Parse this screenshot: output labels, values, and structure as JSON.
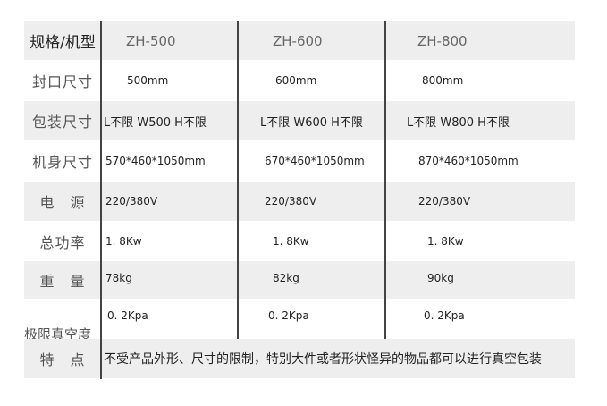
{
  "header": {
    "label": "规格/机型",
    "models": [
      "ZH-500",
      "ZH-600",
      "ZH-800"
    ]
  },
  "rows": [
    {
      "label": "封口尺寸",
      "values": [
        "500mm",
        "600mm",
        "800mm"
      ]
    },
    {
      "label": "包装尺寸",
      "values": [
        "L不限 W500 H不限",
        "L不限 W600 H不限",
        "L不限 W800 H不限"
      ]
    },
    {
      "label": "机身尺寸",
      "values": [
        "570*460*1050mm",
        "670*460*1050mm",
        "870*460*1050mm"
      ]
    },
    {
      "label": "电　源",
      "values": [
        "220/380V",
        "220/380V",
        "220/380V"
      ]
    },
    {
      "label": "总功率",
      "values": [
        "1. 8Kw",
        "1. 8Kw",
        "1. 8Kw"
      ]
    },
    {
      "label": "重　量",
      "values": [
        "78kg",
        "82kg",
        "90kg"
      ]
    },
    {
      "label": "极限真空度",
      "values": [
        "0. 2Kpa",
        "0. 2Kpa",
        "0. 2Kpa"
      ]
    }
  ],
  "feature": {
    "label": "特　点",
    "text": "不受产品外形、尺寸的限制，特别大件或者形状怪异的物品都可以进行真空包装"
  }
}
